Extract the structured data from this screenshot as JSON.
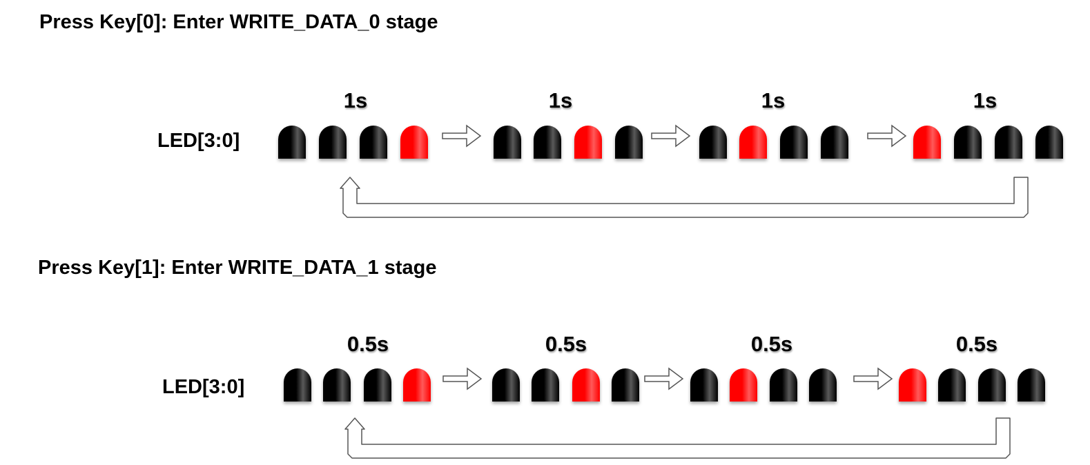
{
  "colors": {
    "led_off": "#000000",
    "led_on": "#ff0000",
    "arrow_stroke": "#555555"
  },
  "diagram1": {
    "heading": "Press Key[0]: Enter WRITE_DATA_0 stage",
    "led_label": "LED[3:0]",
    "durations": [
      "1s",
      "1s",
      "1s",
      "1s"
    ],
    "states": [
      [
        0,
        0,
        0,
        1
      ],
      [
        0,
        0,
        1,
        0
      ],
      [
        0,
        1,
        0,
        0
      ],
      [
        1,
        0,
        0,
        0
      ]
    ],
    "loops_back": true
  },
  "diagram2": {
    "heading": "Press Key[1]: Enter WRITE_DATA_1 stage",
    "led_label": "LED[3:0]",
    "durations": [
      "0.5s",
      "0.5s",
      "0.5s",
      "0.5s"
    ],
    "states": [
      [
        0,
        0,
        0,
        1
      ],
      [
        0,
        0,
        1,
        0
      ],
      [
        0,
        1,
        0,
        0
      ],
      [
        1,
        0,
        0,
        0
      ]
    ],
    "loops_back": true
  }
}
